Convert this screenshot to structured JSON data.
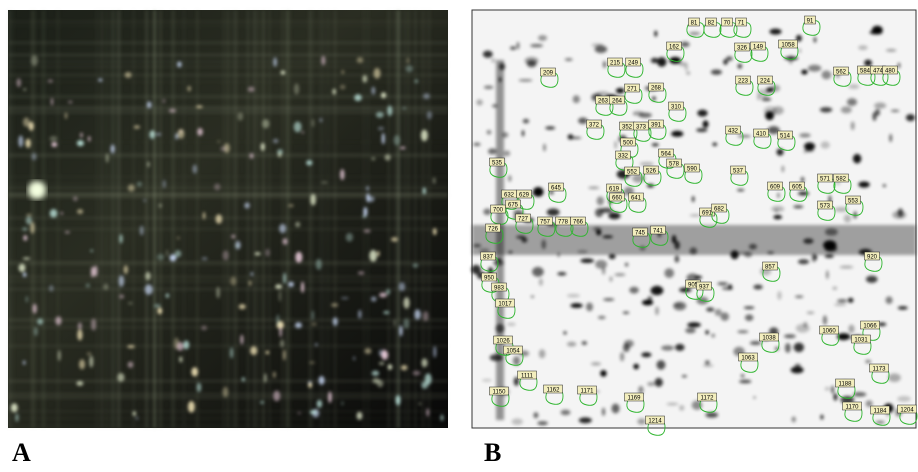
{
  "panels": [
    {
      "label": "A"
    },
    {
      "label": "B",
      "spot_labels": [
        "81",
        "82",
        "70",
        "71",
        "91",
        "326",
        "149",
        "1058",
        "162",
        "215",
        "249",
        "209",
        "223",
        "224",
        "271",
        "268",
        "263",
        "264",
        "562",
        "584",
        "474",
        "480",
        "372",
        "352",
        "373",
        "391",
        "310",
        "432",
        "410",
        "514",
        "535",
        "500",
        "332",
        "564",
        "578",
        "552",
        "526",
        "590",
        "537",
        "609",
        "605",
        "571",
        "582",
        "573",
        "553",
        "645",
        "619",
        "660",
        "641",
        "632",
        "629",
        "700",
        "675",
        "726",
        "727",
        "757",
        "778",
        "766",
        "691",
        "682",
        "745",
        "741",
        "837",
        "950",
        "983",
        "1017",
        "1026",
        "1054",
        "1111",
        "1150",
        "1162",
        "1171",
        "1169",
        "1214",
        "1172",
        "1188",
        "1170",
        "1184",
        "1204",
        "1063",
        "1060",
        "1066",
        "1031",
        "1038",
        "1173",
        "905",
        "937",
        "920",
        "857"
      ]
    }
  ]
}
